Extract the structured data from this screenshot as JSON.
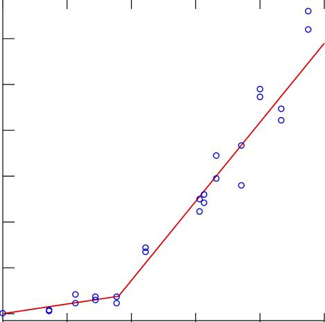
{
  "chart_data": {
    "type": "scatter",
    "title": "",
    "xlabel": "",
    "ylabel": "",
    "xlim": [
      0,
      5
    ],
    "ylim": [
      0,
      7
    ],
    "grid": false,
    "legend": "none",
    "x_ticks": [
      0,
      1,
      2,
      3,
      4,
      5
    ],
    "y_ticks": [
      0,
      1,
      2,
      3,
      4,
      5,
      6,
      7
    ],
    "series": [
      {
        "kind": "points",
        "marker": "open-circle",
        "color": "#0000cc",
        "x": [
          0.0,
          0.72,
          0.72,
          1.13,
          1.13,
          1.44,
          1.44,
          1.77,
          1.77,
          2.22,
          2.22,
          3.06,
          3.06,
          3.13,
          3.13,
          3.32,
          3.32,
          3.71,
          3.71,
          4.0,
          4.0,
          4.33,
          4.33,
          4.75,
          4.75
        ],
        "y": [
          0.01,
          0.06,
          0.08,
          0.23,
          0.42,
          0.3,
          0.37,
          0.23,
          0.37,
          1.35,
          1.44,
          2.23,
          2.5,
          2.42,
          2.6,
          2.95,
          3.45,
          2.8,
          3.67,
          4.73,
          4.9,
          4.22,
          4.47,
          6.2,
          6.6
        ]
      },
      {
        "kind": "segmented-line",
        "color": "#dd0000",
        "x": [
          0.0,
          1.8,
          5.0
        ],
        "y": [
          0.0,
          0.38,
          5.9
        ]
      }
    ]
  }
}
